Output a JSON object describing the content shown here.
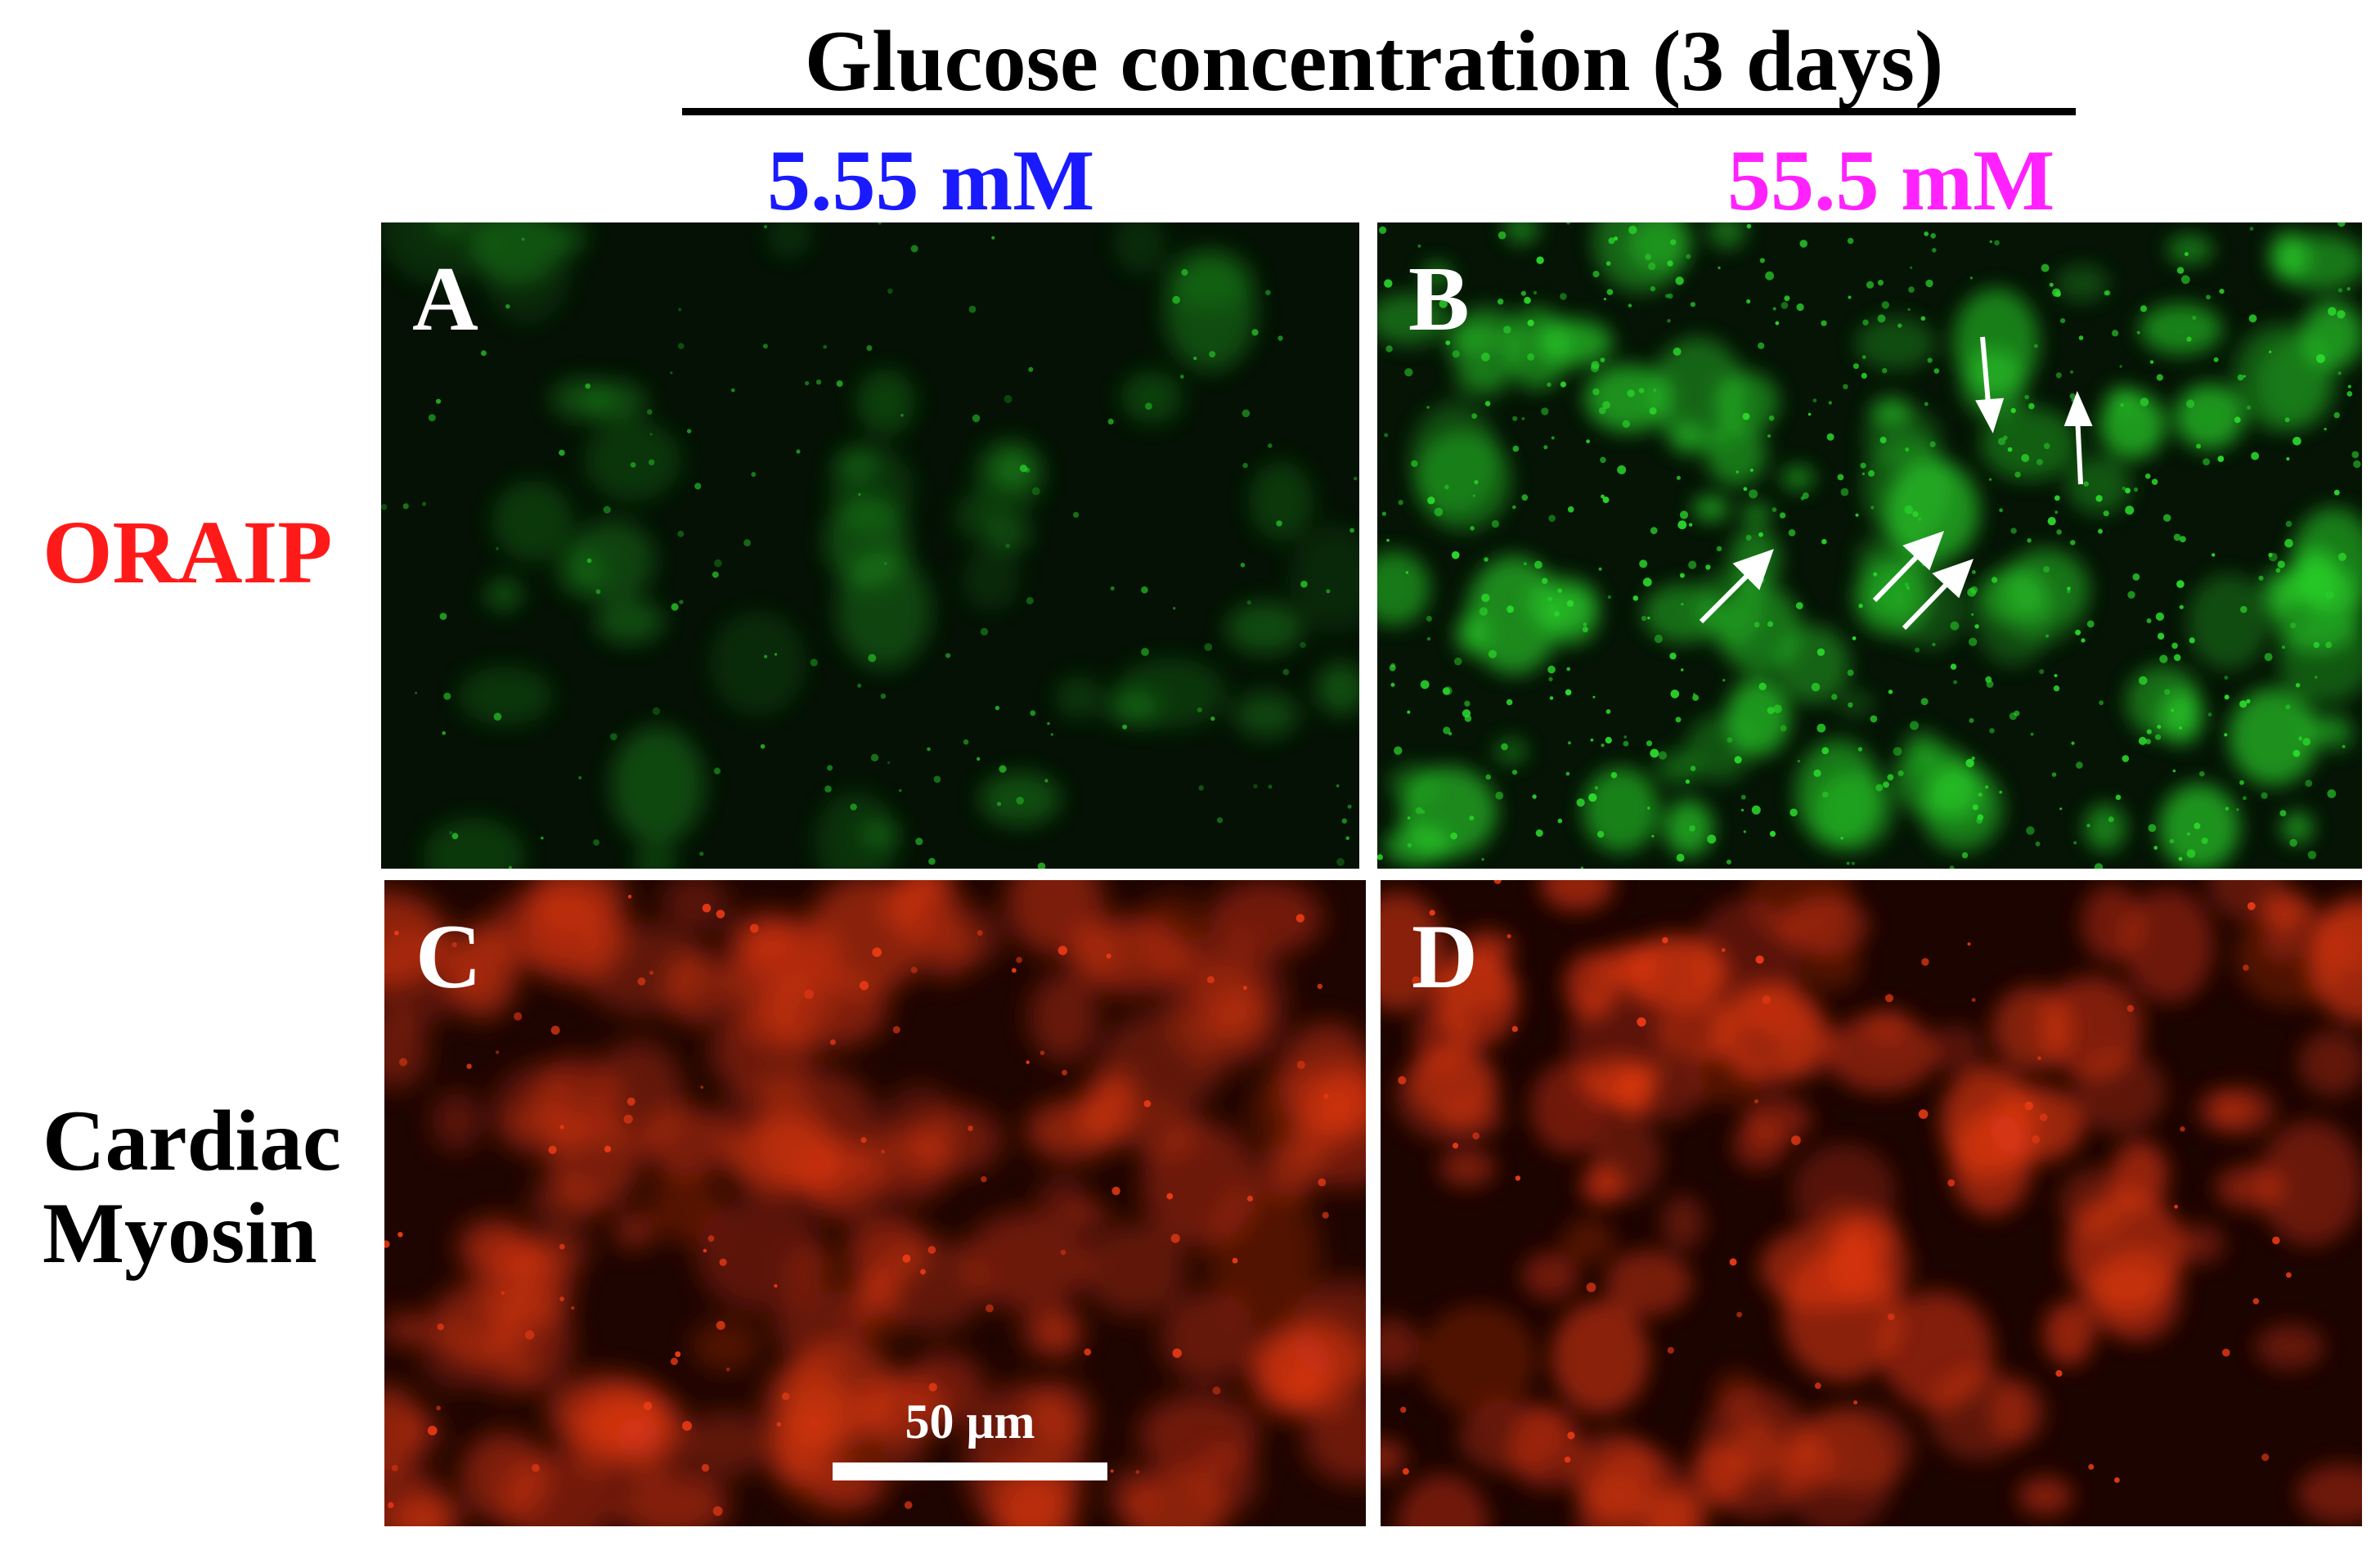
{
  "figure": {
    "title": "Glucose concentration (3 days)",
    "columns": [
      {
        "label": "5.55 mM",
        "color": "#1a1aff"
      },
      {
        "label": "55.5 mM",
        "color": "#ff22ff"
      }
    ],
    "rows": [
      {
        "label": "ORAIP",
        "color": "#ff1a1a"
      },
      {
        "label_lines": [
          "Cardiac",
          "Myosin"
        ],
        "color": "#000000"
      }
    ],
    "panels": [
      {
        "letter": "A",
        "stain": "green"
      },
      {
        "letter": "B",
        "stain": "green"
      },
      {
        "letter": "C",
        "stain": "red"
      },
      {
        "letter": "D",
        "stain": "red"
      }
    ],
    "scale_bar": {
      "label": "50 μm"
    }
  },
  "colors": {
    "oraip_green": "#2bd72b",
    "myosin_red": "#e83a14",
    "arrow": "#ffffff"
  }
}
